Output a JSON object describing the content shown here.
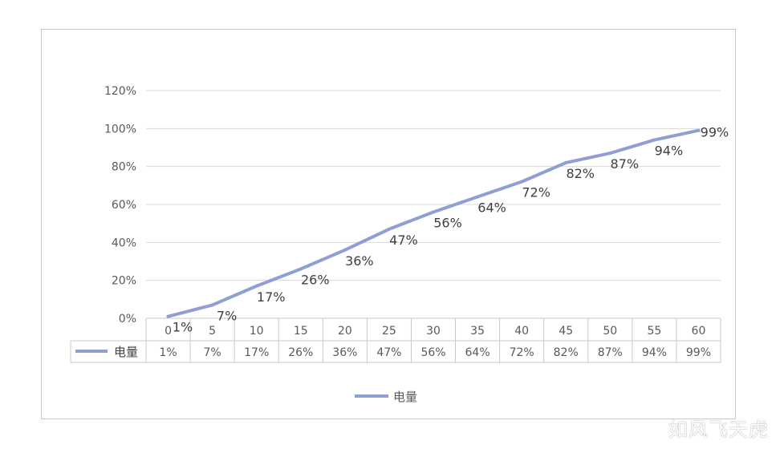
{
  "chart_data": {
    "type": "line",
    "title": "",
    "xlabel": "",
    "ylabel": "",
    "x": [
      "0",
      "5",
      "10",
      "15",
      "20",
      "25",
      "30",
      "35",
      "40",
      "45",
      "50",
      "55",
      "60"
    ],
    "series": [
      {
        "name": "电量",
        "values": [
          0.01,
          0.07,
          0.17,
          0.26,
          0.36,
          0.47,
          0.56,
          0.64,
          0.72,
          0.82,
          0.87,
          0.94,
          0.99
        ],
        "labels": [
          "1%",
          "7%",
          "17%",
          "26%",
          "36%",
          "47%",
          "56%",
          "64%",
          "72%",
          "82%",
          "87%",
          "94%",
          "99%"
        ],
        "color": "#8f9fd4"
      }
    ],
    "ylim": [
      0,
      1.2
    ],
    "yticks": [
      "0%",
      "20%",
      "40%",
      "60%",
      "80%",
      "100%",
      "120%"
    ],
    "grid": true,
    "legend": "bottom",
    "data_table": true
  },
  "watermark": "如风飞天虎"
}
